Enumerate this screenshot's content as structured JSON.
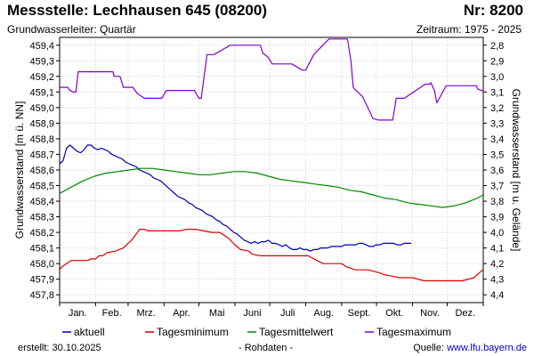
{
  "header": {
    "title": "Messstelle: Lechhausen 645 (08200)",
    "nr": "Nr: 8200",
    "aquifer": "Grundwasserleiter: Quartär",
    "period": "Zeitraum: 1975 - 2025"
  },
  "footer": {
    "created_label": "erstellt:",
    "created_date": "30.10.2025",
    "raw": "- Rohdaten -",
    "source_label": "Quelle:",
    "source_url": "www.lfu.bayern.de"
  },
  "chart_data": {
    "type": "line",
    "ylabel": "Grundwasserstand [m ü. NN]",
    "y2label": "Grundwasserstand [m u. Gelände]",
    "ylim": [
      457.75,
      459.45
    ],
    "y2lim": [
      2.75,
      4.45
    ],
    "y_ticks": [
      "457,8",
      "457,9",
      "458,0",
      "458,1",
      "458,2",
      "458,3",
      "458,4",
      "458,5",
      "458,6",
      "458,7",
      "458,8",
      "458,9",
      "459,0",
      "459,1",
      "459,2",
      "459,3",
      "459,4"
    ],
    "y2_ticks": [
      "2,8",
      "2,9",
      "3,0",
      "3,1",
      "3,2",
      "3,3",
      "3,4",
      "3,5",
      "3,6",
      "3,7",
      "3,8",
      "3,9",
      "4,0",
      "4,1",
      "4,2",
      "4,3",
      "4,4"
    ],
    "x_domain": [
      0,
      365
    ],
    "months": [
      "Jan.",
      "Feb.",
      "Mrz.",
      "Apr.",
      "Mai",
      "Juni",
      "Juli",
      "Aug.",
      "Sept.",
      "Okt.",
      "Nov.",
      "Dez."
    ],
    "series": [
      {
        "name": "aktuell",
        "color": "#0000aa",
        "x": [
          0,
          3,
          6,
          9,
          12,
          15,
          18,
          21,
          24,
          27,
          30,
          33,
          36,
          39,
          42,
          45,
          48,
          51,
          54,
          57,
          60,
          63,
          66,
          69,
          72,
          75,
          78,
          81,
          84,
          87,
          90,
          93,
          96,
          99,
          102,
          105,
          108,
          111,
          114,
          117,
          120,
          123,
          126,
          129,
          132,
          135,
          138,
          141,
          144,
          147,
          150,
          153,
          156,
          159,
          162,
          165,
          168,
          171,
          174,
          177,
          180,
          183,
          186,
          189,
          192,
          195,
          198,
          201,
          204,
          207,
          210,
          213,
          216,
          219,
          222,
          225,
          228,
          231,
          234,
          237,
          240,
          243,
          246,
          249,
          252,
          255,
          258,
          261,
          264,
          267,
          270,
          273,
          276,
          279,
          282,
          285,
          288,
          291,
          294,
          297,
          300,
          303
        ],
        "values": [
          458.64,
          458.66,
          458.74,
          458.76,
          458.74,
          458.72,
          458.71,
          458.73,
          458.76,
          458.76,
          458.74,
          458.73,
          458.74,
          458.73,
          458.72,
          458.7,
          458.69,
          458.68,
          458.67,
          458.65,
          458.64,
          458.63,
          458.62,
          458.6,
          458.59,
          458.58,
          458.57,
          458.55,
          458.54,
          458.53,
          458.51,
          458.49,
          458.47,
          458.45,
          458.43,
          458.42,
          458.41,
          458.39,
          458.38,
          458.36,
          458.35,
          458.34,
          458.32,
          458.31,
          458.3,
          458.28,
          458.27,
          458.25,
          458.24,
          458.22,
          458.2,
          458.19,
          458.17,
          458.15,
          458.14,
          458.13,
          458.14,
          458.13,
          458.14,
          458.14,
          458.15,
          458.13,
          458.13,
          458.12,
          458.11,
          458.12,
          458.1,
          458.09,
          458.09,
          458.1,
          458.09,
          458.09,
          458.08,
          458.09,
          458.09,
          458.1,
          458.1,
          458.1,
          458.11,
          458.11,
          458.11,
          458.11,
          458.12,
          458.12,
          458.12,
          458.12,
          458.13,
          458.13,
          458.12,
          458.11,
          458.11,
          458.12,
          458.12,
          458.13,
          458.13,
          458.13,
          458.13,
          458.12,
          458.12,
          458.13,
          458.13,
          458.13
        ]
      },
      {
        "name": "Tagesminimum",
        "color": "#dd0000",
        "x": [
          0,
          2,
          4,
          6,
          8,
          10,
          17,
          24,
          27,
          31,
          34,
          37,
          41,
          48,
          55,
          59,
          62,
          69,
          73,
          76,
          86,
          96,
          103,
          110,
          117,
          124,
          131,
          138,
          146,
          151,
          156,
          163,
          166,
          173,
          180,
          187,
          201,
          214,
          227,
          243,
          247,
          255,
          266,
          276,
          279,
          286,
          293,
          297,
          304,
          314,
          328,
          335,
          347,
          357,
          360,
          363,
          365
        ],
        "values": [
          457.96,
          457.98,
          457.99,
          458.0,
          458.01,
          458.02,
          458.02,
          458.02,
          458.03,
          458.03,
          458.05,
          458.05,
          458.07,
          458.08,
          458.1,
          458.13,
          458.15,
          458.22,
          458.22,
          458.21,
          458.21,
          458.21,
          458.21,
          458.22,
          458.22,
          458.21,
          458.2,
          458.2,
          458.16,
          458.12,
          458.09,
          458.08,
          458.06,
          458.05,
          458.05,
          458.05,
          458.05,
          458.05,
          458.0,
          458.0,
          457.98,
          457.96,
          457.96,
          457.94,
          457.93,
          457.92,
          457.91,
          457.91,
          457.91,
          457.89,
          457.89,
          457.89,
          457.89,
          457.91,
          457.93,
          457.95,
          457.96
        ]
      },
      {
        "name": "Tagesmittelwert",
        "color": "#008800",
        "x": [
          0,
          10,
          20,
          30,
          40,
          50,
          60,
          70,
          80,
          90,
          100,
          110,
          120,
          130,
          140,
          150,
          160,
          170,
          180,
          190,
          200,
          210,
          220,
          230,
          240,
          250,
          260,
          270,
          280,
          290,
          300,
          310,
          320,
          330,
          340,
          350,
          360,
          365
        ],
        "values": [
          458.45,
          458.49,
          458.53,
          458.56,
          458.58,
          458.59,
          458.6,
          458.61,
          458.61,
          458.6,
          458.59,
          458.58,
          458.57,
          458.57,
          458.58,
          458.59,
          458.59,
          458.58,
          458.56,
          458.54,
          458.53,
          458.52,
          458.51,
          458.5,
          458.49,
          458.47,
          458.46,
          458.44,
          458.42,
          458.41,
          458.39,
          458.38,
          458.37,
          458.36,
          458.37,
          458.39,
          458.42,
          458.44
        ]
      },
      {
        "name": "Tagesmaximum",
        "color": "#8000d0",
        "x": [
          0,
          7,
          9,
          12,
          14,
          16,
          46,
          47,
          52,
          55,
          63,
          67,
          73,
          88,
          92,
          116,
          120,
          122,
          127,
          133,
          147,
          173,
          175,
          180,
          183,
          200,
          209,
          212,
          219,
          232,
          242,
          248,
          251,
          253,
          254,
          261,
          270,
          275,
          280,
          283,
          287,
          290,
          297,
          315,
          317,
          319,
          320,
          321,
          323,
          325,
          333,
          350,
          359,
          360,
          363,
          365
        ],
        "values": [
          459.13,
          459.13,
          459.11,
          459.1,
          459.1,
          459.23,
          459.23,
          459.2,
          459.2,
          459.13,
          459.13,
          459.09,
          459.06,
          459.06,
          459.11,
          459.11,
          459.06,
          459.06,
          459.34,
          459.34,
          459.4,
          459.4,
          459.35,
          459.32,
          459.28,
          459.28,
          459.24,
          459.24,
          459.34,
          459.44,
          459.44,
          459.44,
          459.3,
          459.13,
          459.12,
          459.07,
          458.93,
          458.92,
          458.92,
          458.92,
          458.92,
          459.06,
          459.06,
          459.15,
          459.15,
          459.15,
          459.16,
          459.14,
          459.11,
          459.03,
          459.14,
          459.14,
          459.14,
          459.12,
          459.11,
          459.11
        ]
      }
    ]
  }
}
